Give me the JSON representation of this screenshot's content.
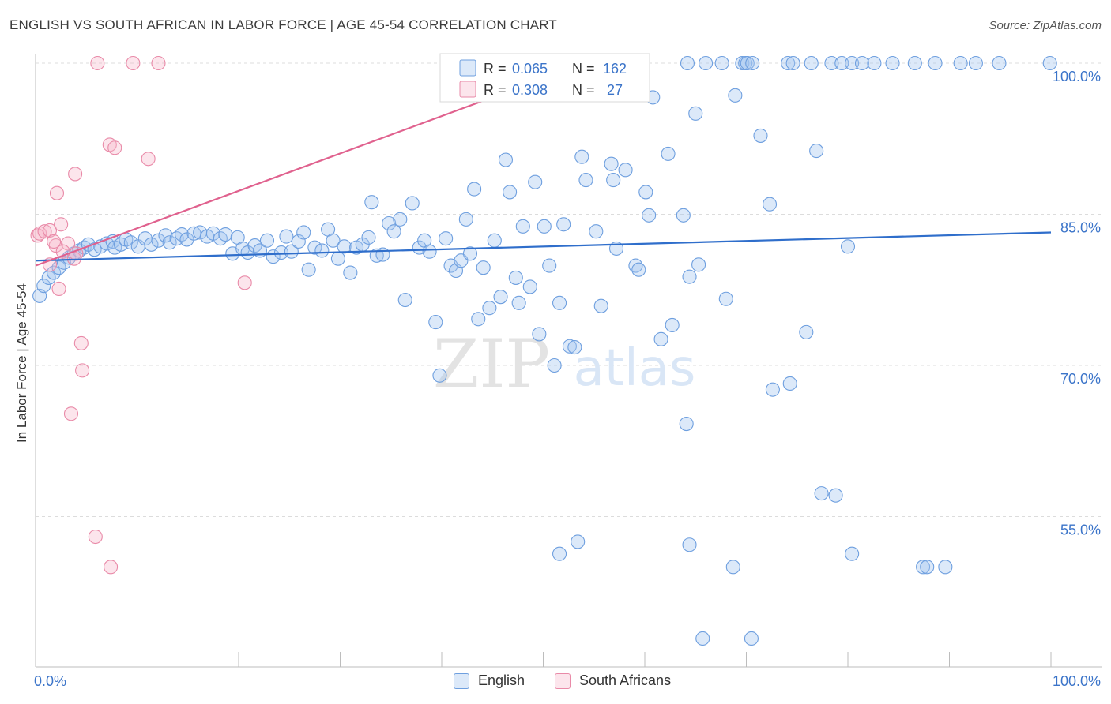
{
  "title": "ENGLISH VS SOUTH AFRICAN IN LABOR FORCE | AGE 45-54 CORRELATION CHART",
  "source": "Source: ZipAtlas.com",
  "watermark": {
    "zip": "ZIP",
    "atlas": "atlas"
  },
  "colors": {
    "english_fill": "rgba(164,196,240,0.38)",
    "english_stroke": "#6e9fdf",
    "english_line": "#2f6ecb",
    "sa_fill": "rgba(246,180,200,0.35)",
    "sa_stroke": "#e98aa8",
    "sa_line": "#e0618e",
    "axis_text": "#3b74c9",
    "grid": "#dcdcdc"
  },
  "legend": {
    "rows": [
      {
        "r_label": "R = ",
        "r_value": "0.065",
        "n_label": "N = ",
        "n_value": "162"
      },
      {
        "r_label": "R = ",
        "r_value": "0.308",
        "n_label": "N = ",
        "n_value": " 27"
      }
    ]
  },
  "chart_data": {
    "type": "scatter",
    "title": "ENGLISH VS SOUTH AFRICAN IN LABOR FORCE | AGE 45-54 CORRELATION CHART",
    "xlabel": "",
    "ylabel": "In Labor Force | Age 45-54",
    "xlim": [
      0,
      100
    ],
    "ylim": [
      37,
      100
    ],
    "x_tick_labels": [
      "0.0%",
      "100.0%"
    ],
    "y_ticks": [
      55,
      70,
      85,
      100
    ],
    "y_tick_labels": [
      "55.0%",
      "70.0%",
      "85.0%",
      "100.0%"
    ],
    "grid": true,
    "legend_position": "top-center",
    "series": [
      {
        "name": "English",
        "r": 0.065,
        "n": 162,
        "trend": {
          "x": [
            0,
            100
          ],
          "y": [
            80.4,
            83.2
          ]
        },
        "points": [
          [
            0.4,
            76.9
          ],
          [
            0.8,
            77.9
          ],
          [
            1.3,
            78.7
          ],
          [
            1.8,
            79.2
          ],
          [
            2.3,
            79.7
          ],
          [
            2.8,
            80.2
          ],
          [
            3.3,
            80.7
          ],
          [
            3.8,
            81.1
          ],
          [
            4.3,
            81.4
          ],
          [
            4.8,
            81.7
          ],
          [
            5.2,
            82.0
          ],
          [
            5.8,
            81.5
          ],
          [
            6.4,
            81.8
          ],
          [
            7.0,
            82.1
          ],
          [
            7.6,
            82.3
          ],
          [
            7.8,
            81.7
          ],
          [
            8.4,
            82.0
          ],
          [
            8.9,
            82.5
          ],
          [
            9.4,
            82.2
          ],
          [
            10.1,
            81.8
          ],
          [
            10.8,
            82.6
          ],
          [
            11.4,
            82.0
          ],
          [
            12.1,
            82.4
          ],
          [
            12.8,
            82.9
          ],
          [
            13.2,
            82.2
          ],
          [
            13.9,
            82.6
          ],
          [
            14.4,
            83.0
          ],
          [
            14.9,
            82.5
          ],
          [
            15.6,
            83.1
          ],
          [
            16.2,
            83.2
          ],
          [
            16.9,
            82.8
          ],
          [
            17.5,
            83.1
          ],
          [
            18.2,
            82.6
          ],
          [
            18.7,
            83.0
          ],
          [
            19.4,
            81.1
          ],
          [
            19.9,
            82.7
          ],
          [
            20.4,
            81.6
          ],
          [
            20.9,
            81.2
          ],
          [
            21.6,
            81.9
          ],
          [
            22.1,
            81.4
          ],
          [
            22.8,
            82.4
          ],
          [
            23.4,
            80.8
          ],
          [
            24.2,
            81.2
          ],
          [
            24.7,
            82.8
          ],
          [
            25.2,
            81.3
          ],
          [
            25.9,
            82.3
          ],
          [
            26.4,
            83.2
          ],
          [
            26.9,
            79.5
          ],
          [
            27.5,
            81.7
          ],
          [
            28.2,
            81.4
          ],
          [
            28.8,
            83.5
          ],
          [
            29.3,
            82.4
          ],
          [
            29.8,
            80.6
          ],
          [
            30.4,
            81.8
          ],
          [
            31.0,
            79.2
          ],
          [
            31.6,
            81.7
          ],
          [
            32.2,
            82.0
          ],
          [
            32.8,
            82.7
          ],
          [
            33.1,
            86.2
          ],
          [
            33.6,
            80.9
          ],
          [
            34.2,
            81.0
          ],
          [
            34.8,
            84.1
          ],
          [
            35.3,
            83.3
          ],
          [
            35.9,
            84.5
          ],
          [
            36.4,
            76.5
          ],
          [
            37.1,
            86.1
          ],
          [
            37.8,
            81.7
          ],
          [
            38.3,
            82.4
          ],
          [
            38.8,
            81.3
          ],
          [
            39.4,
            74.3
          ],
          [
            39.8,
            69.0
          ],
          [
            40.4,
            82.6
          ],
          [
            40.9,
            79.9
          ],
          [
            41.4,
            79.4
          ],
          [
            41.9,
            80.4
          ],
          [
            42.4,
            84.5
          ],
          [
            42.8,
            81.1
          ],
          [
            43.2,
            87.5
          ],
          [
            43.6,
            74.6
          ],
          [
            44.1,
            79.7
          ],
          [
            44.7,
            75.7
          ],
          [
            45.2,
            82.4
          ],
          [
            45.8,
            76.8
          ],
          [
            46.3,
            90.4
          ],
          [
            46.7,
            87.2
          ],
          [
            47.3,
            78.7
          ],
          [
            47.6,
            76.2
          ],
          [
            48.0,
            83.8
          ],
          [
            48.7,
            77.8
          ],
          [
            49.2,
            88.2
          ],
          [
            49.6,
            73.1
          ],
          [
            50.1,
            83.8
          ],
          [
            50.6,
            79.9
          ],
          [
            51.1,
            70.0
          ],
          [
            51.6,
            76.2
          ],
          [
            52.0,
            84.0
          ],
          [
            52.6,
            71.9
          ],
          [
            53.1,
            71.8
          ],
          [
            53.8,
            90.7
          ],
          [
            54.2,
            88.4
          ],
          [
            55.2,
            83.3
          ],
          [
            55.7,
            75.9
          ],
          [
            56.7,
            90.0
          ],
          [
            56.9,
            88.4
          ],
          [
            57.2,
            81.6
          ],
          [
            58.1,
            89.4
          ],
          [
            59.1,
            79.9
          ],
          [
            59.4,
            79.5
          ],
          [
            60.1,
            87.2
          ],
          [
            60.4,
            84.9
          ],
          [
            60.8,
            96.6
          ],
          [
            61.6,
            72.6
          ],
          [
            62.3,
            91.0
          ],
          [
            62.7,
            74.0
          ],
          [
            63.8,
            84.9
          ],
          [
            64.1,
            64.2
          ],
          [
            64.4,
            78.8
          ],
          [
            65.0,
            95.0
          ],
          [
            65.3,
            80.0
          ],
          [
            64.2,
            100.0
          ],
          [
            66.0,
            100.0
          ],
          [
            67.6,
            100.0
          ],
          [
            68.0,
            76.6
          ],
          [
            68.9,
            96.8
          ],
          [
            69.6,
            100.0
          ],
          [
            69.9,
            100.0
          ],
          [
            70.1,
            100.0
          ],
          [
            70.6,
            100.0
          ],
          [
            71.4,
            92.8
          ],
          [
            72.3,
            86.0
          ],
          [
            72.6,
            67.6
          ],
          [
            74.1,
            100.0
          ],
          [
            74.6,
            100.0
          ],
          [
            76.4,
            100.0
          ],
          [
            75.9,
            73.3
          ],
          [
            76.9,
            91.3
          ],
          [
            78.4,
            100.0
          ],
          [
            79.4,
            100.0
          ],
          [
            80.0,
            81.8
          ],
          [
            80.4,
            100.0
          ],
          [
            81.4,
            100.0
          ],
          [
            82.6,
            100.0
          ],
          [
            84.4,
            100.0
          ],
          [
            86.6,
            100.0
          ],
          [
            88.6,
            100.0
          ],
          [
            91.1,
            100.0
          ],
          [
            92.6,
            100.0
          ],
          [
            94.9,
            100.0
          ],
          [
            99.9,
            100.0
          ],
          [
            74.3,
            68.2
          ],
          [
            77.4,
            57.3
          ],
          [
            78.8,
            57.1
          ],
          [
            80.4,
            51.3
          ],
          [
            51.6,
            51.3
          ],
          [
            53.4,
            52.5
          ],
          [
            64.4,
            52.2
          ],
          [
            68.7,
            50.0
          ],
          [
            87.4,
            50.0
          ],
          [
            87.8,
            50.0
          ],
          [
            89.6,
            50.0
          ],
          [
            65.7,
            42.9
          ],
          [
            70.5,
            42.9
          ]
        ]
      },
      {
        "name": "South Africans",
        "r": 0.308,
        "n": 27,
        "trend": {
          "x": [
            0,
            55.5
          ],
          "y": [
            79.9,
            100.5
          ]
        },
        "points": [
          [
            0.2,
            82.9
          ],
          [
            0.4,
            83.1
          ],
          [
            0.9,
            83.3
          ],
          [
            1.4,
            83.4
          ],
          [
            2.1,
            87.1
          ],
          [
            2.5,
            84.0
          ],
          [
            1.4,
            80.0
          ],
          [
            2.0,
            81.9
          ],
          [
            3.2,
            82.1
          ],
          [
            3.8,
            80.6
          ],
          [
            4.0,
            81.1
          ],
          [
            2.7,
            81.3
          ],
          [
            1.8,
            82.3
          ],
          [
            2.3,
            77.6
          ],
          [
            3.9,
            89.0
          ],
          [
            7.3,
            91.9
          ],
          [
            7.8,
            91.6
          ],
          [
            11.1,
            90.5
          ],
          [
            20.6,
            78.2
          ],
          [
            4.5,
            72.2
          ],
          [
            4.6,
            69.5
          ],
          [
            3.5,
            65.2
          ],
          [
            6.1,
            100.0
          ],
          [
            9.6,
            100.0
          ],
          [
            12.1,
            100.0
          ],
          [
            5.9,
            53.0
          ],
          [
            7.4,
            50.0
          ]
        ]
      }
    ]
  },
  "bottom_legend": [
    {
      "label": "English"
    },
    {
      "label": "South Africans"
    }
  ]
}
